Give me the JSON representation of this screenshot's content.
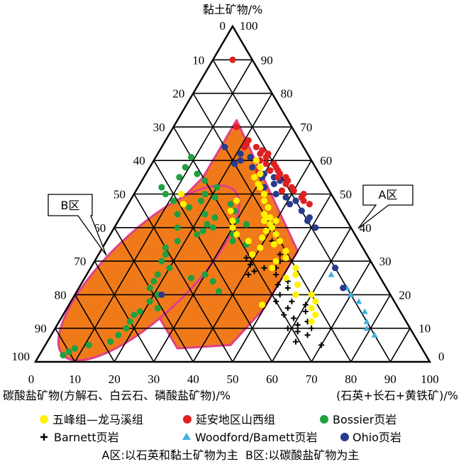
{
  "chart_data": {
    "type": "scatter",
    "subtype": "ternary",
    "axes": {
      "top": {
        "label": "黏土矿物/%",
        "ticks": [
          "0",
          "10",
          "20",
          "30",
          "40",
          "50",
          "60",
          "70",
          "80",
          "90",
          "100"
        ],
        "right_ticks": [
          "100",
          "90",
          "80",
          "70",
          "60",
          "50",
          "40",
          "30",
          "20",
          "10",
          "0"
        ]
      },
      "left": {
        "label": "碳酸盐矿物(方解石、白云石、磷酸盐矿物)/%"
      },
      "right": {
        "label": "(石英+长石+黄铁矿)/%"
      },
      "bottom_ticks": [
        "0",
        "10",
        "20",
        "30",
        "40",
        "50",
        "60",
        "70",
        "80",
        "90",
        "100"
      ],
      "grid": true
    },
    "fields": [
      {
        "label": "A区",
        "fill": "#f07a1a",
        "border": "#e0408a",
        "vertices_clay_carb_qfp": [
          [
            72,
            13,
            15
          ],
          [
            61,
            24,
            15
          ],
          [
            55,
            30,
            15
          ],
          [
            40,
            50,
            10
          ],
          [
            15,
            62,
            23
          ],
          [
            4,
            62,
            34
          ],
          [
            5,
            48,
            47
          ],
          [
            16,
            34,
            50
          ],
          [
            33,
            17,
            50
          ]
        ]
      },
      {
        "label": "B区",
        "fill": "#f07a1a",
        "border": "#e0408a",
        "ellipse_ends_clay_carb_qfp": [
          [
            2,
            92,
            6
          ],
          [
            51,
            24,
            25
          ]
        ]
      }
    ],
    "series": [
      {
        "name": "五峰组—龙马溪组",
        "marker": "circle",
        "color": "#fff200",
        "points": [
          [
            60,
            14,
            26
          ],
          [
            58,
            14,
            28
          ],
          [
            56,
            15,
            29
          ],
          [
            55,
            17,
            28
          ],
          [
            53,
            17,
            30
          ],
          [
            52,
            17,
            31
          ],
          [
            50,
            17,
            33
          ],
          [
            48,
            18,
            34
          ],
          [
            46,
            18,
            36
          ],
          [
            44,
            20,
            36
          ],
          [
            43,
            20,
            37
          ],
          [
            43,
            19,
            38
          ],
          [
            42,
            18,
            40
          ],
          [
            41,
            20,
            39
          ],
          [
            40,
            20,
            40
          ],
          [
            42,
            21,
            37
          ],
          [
            39,
            22,
            39
          ],
          [
            38,
            20,
            42
          ],
          [
            36,
            20,
            44
          ],
          [
            35,
            22,
            43
          ],
          [
            33,
            20,
            47
          ],
          [
            31,
            21,
            48
          ],
          [
            28,
            20,
            52
          ],
          [
            26,
            21,
            53
          ],
          [
            23,
            22,
            55
          ],
          [
            20,
            20,
            60
          ],
          [
            18,
            20,
            62
          ],
          [
            16,
            22,
            62
          ],
          [
            14,
            22,
            64
          ],
          [
            12,
            24,
            64
          ],
          [
            48,
            25,
            27
          ],
          [
            45,
            28,
            27
          ],
          [
            40,
            30,
            30
          ],
          [
            38,
            30,
            32
          ],
          [
            36,
            28,
            36
          ],
          [
            34,
            26,
            40
          ],
          [
            30,
            24,
            46
          ],
          [
            25,
            24,
            51
          ],
          [
            20,
            24,
            56
          ],
          [
            50,
            38,
            12
          ],
          [
            47,
            39,
            14
          ],
          [
            17,
            34,
            49
          ],
          [
            42,
            29,
            29
          ],
          [
            37,
            24,
            39
          ],
          [
            32,
            29,
            39
          ],
          [
            28,
            26,
            46
          ]
        ]
      },
      {
        "name": "延安地区山西组",
        "marker": "circle",
        "color": "#e02020",
        "points": [
          [
            90,
            5,
            5
          ],
          [
            70,
            14,
            16
          ],
          [
            65,
            14,
            21
          ],
          [
            64,
            12,
            24
          ],
          [
            63,
            11,
            26
          ],
          [
            62,
            12,
            26
          ],
          [
            61,
            11,
            28
          ],
          [
            59,
            12,
            29
          ],
          [
            58,
            10,
            32
          ],
          [
            57,
            10,
            33
          ],
          [
            56,
            10,
            34
          ],
          [
            55,
            9,
            36
          ],
          [
            54,
            9,
            37
          ],
          [
            52,
            9,
            39
          ],
          [
            51,
            9,
            40
          ],
          [
            50,
            7,
            43
          ],
          [
            49,
            8,
            43
          ],
          [
            48,
            8,
            44
          ],
          [
            47,
            7,
            46
          ],
          [
            60,
            13,
            27
          ],
          [
            57,
            12,
            31
          ],
          [
            53,
            10,
            37
          ],
          [
            62,
            10,
            28
          ],
          [
            55,
            11,
            34
          ],
          [
            59,
            10,
            31
          ],
          [
            51,
            12,
            37
          ],
          [
            64,
            15,
            21
          ],
          [
            66,
            13,
            21
          ],
          [
            57,
            15,
            28
          ]
        ]
      },
      {
        "name": "Bossier页岩",
        "marker": "circle",
        "color": "#20a040",
        "points": [
          [
            61,
            30,
            9
          ],
          [
            58,
            33,
            9
          ],
          [
            56,
            31,
            13
          ],
          [
            54,
            30,
            16
          ],
          [
            52,
            28,
            20
          ],
          [
            50,
            32,
            18
          ],
          [
            49,
            30,
            21
          ],
          [
            48,
            34,
            18
          ],
          [
            47,
            27,
            26
          ],
          [
            45,
            27,
            28
          ],
          [
            44,
            35,
            21
          ],
          [
            43,
            33,
            24
          ],
          [
            42,
            28,
            30
          ],
          [
            41,
            26,
            33
          ],
          [
            41,
            36,
            23
          ],
          [
            40,
            35,
            25
          ],
          [
            39,
            38,
            23
          ],
          [
            38,
            31,
            31
          ],
          [
            36,
            32,
            32
          ],
          [
            35,
            29,
            36
          ],
          [
            55,
            36,
            9
          ],
          [
            52,
            42,
            6
          ],
          [
            50,
            42,
            8
          ],
          [
            48,
            41,
            11
          ],
          [
            46,
            38,
            16
          ],
          [
            44,
            42,
            14
          ],
          [
            40,
            44,
            16
          ],
          [
            38,
            40,
            22
          ],
          [
            36,
            46,
            18
          ],
          [
            34,
            50,
            16
          ],
          [
            32,
            51,
            17
          ],
          [
            30,
            53,
            17
          ],
          [
            28,
            52,
            20
          ],
          [
            26,
            56,
            18
          ],
          [
            24,
            58,
            18
          ],
          [
            22,
            60,
            18
          ],
          [
            20,
            59,
            21
          ],
          [
            18,
            62,
            20
          ],
          [
            16,
            61,
            23
          ],
          [
            15,
            66,
            19
          ],
          [
            14,
            68,
            18
          ],
          [
            12,
            70,
            18
          ],
          [
            10,
            72,
            18
          ],
          [
            8,
            75,
            17
          ],
          [
            6,
            78,
            16
          ],
          [
            5,
            84,
            11
          ],
          [
            4,
            88,
            8
          ],
          [
            3,
            90,
            7
          ],
          [
            2,
            92,
            6
          ],
          [
            24,
            43,
            33
          ],
          [
            26,
            44,
            30
          ],
          [
            21,
            43,
            36
          ],
          [
            25,
            48,
            27
          ]
        ]
      },
      {
        "name": "Barnett页岩",
        "marker": "cross",
        "color": "#000000",
        "points": [
          [
            36,
            22,
            42
          ],
          [
            32,
            22,
            46
          ],
          [
            30,
            23,
            47
          ],
          [
            28,
            25,
            47
          ],
          [
            28,
            28,
            44
          ],
          [
            29,
            31,
            40
          ],
          [
            27,
            31,
            42
          ],
          [
            26,
            26,
            48
          ],
          [
            26,
            33,
            41
          ],
          [
            24,
            24,
            52
          ],
          [
            23,
            27,
            50
          ],
          [
            22,
            25,
            53
          ],
          [
            20,
            28,
            52
          ],
          [
            20,
            24,
            56
          ],
          [
            18,
            30,
            52
          ],
          [
            18,
            26,
            56
          ],
          [
            17,
            23,
            60
          ],
          [
            16,
            28,
            56
          ],
          [
            15,
            24,
            61
          ],
          [
            14,
            30,
            56
          ],
          [
            13,
            28,
            59
          ],
          [
            12,
            25,
            63
          ],
          [
            11,
            28,
            61
          ],
          [
            10,
            31,
            59
          ],
          [
            10,
            25,
            65
          ],
          [
            9,
            29,
            62
          ],
          [
            8,
            27,
            65
          ],
          [
            6,
            31,
            63
          ],
          [
            5,
            25,
            70
          ],
          [
            31,
            31,
            38
          ]
        ]
      },
      {
        "name": "Woodford/Bamett页岩",
        "marker": "triangle",
        "color": "#3fb0e0",
        "points": [
          [
            22,
            10,
            68
          ],
          [
            20,
            10,
            70
          ],
          [
            18,
            9,
            73
          ],
          [
            15,
            9,
            76
          ],
          [
            12,
            10,
            78
          ],
          [
            10,
            11,
            79
          ],
          [
            8,
            10,
            82
          ],
          [
            26,
            12,
            62
          ]
        ]
      },
      {
        "name": "Ohio页岩",
        "marker": "circle",
        "color": "#2a3a8c",
        "points": [
          [
            64,
            20,
            16
          ],
          [
            62,
            17,
            21
          ],
          [
            60,
            18,
            22
          ],
          [
            59,
            20,
            21
          ],
          [
            58,
            16,
            26
          ],
          [
            57,
            12,
            31
          ],
          [
            56,
            14,
            30
          ],
          [
            55,
            12,
            33
          ],
          [
            54,
            11,
            35
          ],
          [
            53,
            13,
            34
          ],
          [
            52,
            16,
            32
          ],
          [
            51,
            12,
            37
          ],
          [
            50,
            14,
            36
          ],
          [
            49,
            12,
            39
          ],
          [
            48,
            10,
            42
          ],
          [
            47,
            12,
            41
          ],
          [
            45,
            10,
            45
          ],
          [
            43,
            9,
            48
          ],
          [
            42,
            10,
            48
          ],
          [
            40,
            9,
            51
          ],
          [
            28,
            10,
            62
          ],
          [
            20,
            58,
            22
          ],
          [
            22,
            11,
            67
          ],
          [
            61,
            15,
            24
          ],
          [
            55,
            15,
            30
          ]
        ]
      }
    ]
  },
  "labels": {
    "zone_a": "A区",
    "zone_b": "B区"
  },
  "legend": {
    "items": [
      {
        "label": "五峰组—龙马溪组"
      },
      {
        "label": "延安地区山西组"
      },
      {
        "label": "Bossier页岩"
      },
      {
        "label": "Barnett页岩"
      },
      {
        "label": "Woodford/Bamett页岩"
      },
      {
        "label": "Ohio页岩"
      }
    ],
    "note": "A区:以石英和黏土矿物为主  B区:以碳酸盐矿物为主"
  }
}
